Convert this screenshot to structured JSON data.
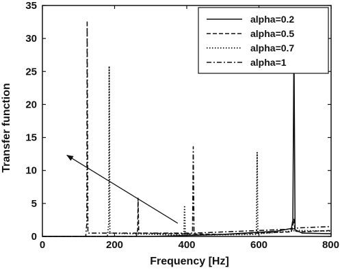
{
  "chart_data": {
    "type": "line",
    "xlabel": "Frequency [Hz]",
    "ylabel": "Transfer function",
    "xlim": [
      0,
      800
    ],
    "ylim": [
      0,
      35
    ],
    "xticks": [
      0,
      200,
      400,
      600,
      800
    ],
    "yticks": [
      0,
      5,
      10,
      15,
      20,
      25,
      30,
      35
    ],
    "grid": false,
    "legend_position": "top-right",
    "series": [
      {
        "name": "alpha=0.2",
        "style": "solid",
        "points": [
          [
            0,
            0
          ],
          [
            300,
            0
          ],
          [
            500,
            0.3
          ],
          [
            650,
            0.8
          ],
          [
            690,
            1.2
          ],
          [
            694,
            2.5
          ],
          [
            697,
            29.2
          ],
          [
            700,
            1.0
          ],
          [
            720,
            0.5
          ],
          [
            800,
            0.4
          ]
        ]
      },
      {
        "name": "alpha=0.5",
        "style": "dashed",
        "points": [
          [
            0,
            0
          ],
          [
            260,
            0
          ],
          [
            264,
            1
          ],
          [
            265,
            5.8
          ],
          [
            267,
            0.5
          ],
          [
            500,
            0.3
          ],
          [
            690,
            0.7
          ],
          [
            697,
            2.6
          ],
          [
            700,
            0.8
          ],
          [
            720,
            0.7
          ],
          [
            800,
            0.9
          ]
        ]
      },
      {
        "name": "alpha=0.7",
        "style": "dotted",
        "points": [
          [
            0,
            0
          ],
          [
            180,
            0
          ],
          [
            184,
            2
          ],
          [
            185,
            25.8
          ],
          [
            187,
            0.5
          ],
          [
            392,
            0.2
          ],
          [
            394,
            4.7
          ],
          [
            396,
            0.2
          ],
          [
            593,
            0.3
          ],
          [
            595,
            12.7
          ],
          [
            597,
            0.4
          ],
          [
            690,
            0.8
          ],
          [
            700,
            0.9
          ],
          [
            800,
            0.8
          ]
        ]
      },
      {
        "name": "alpha=1",
        "style": "dashdot",
        "points": [
          [
            0,
            0
          ],
          [
            120,
            0
          ],
          [
            123,
            2
          ],
          [
            124,
            32.5
          ],
          [
            126,
            0.5
          ],
          [
            416,
            0.5
          ],
          [
            418,
            13.6
          ],
          [
            420,
            0.5
          ],
          [
            690,
            1.1
          ],
          [
            710,
            1.3
          ],
          [
            800,
            1.5
          ]
        ]
      }
    ],
    "annotations": [
      {
        "type": "arrow",
        "from": [
          375,
          2
        ],
        "to": [
          68,
          12.3
        ]
      }
    ]
  },
  "colors": {
    "background": "#ffffff",
    "line": "#111111"
  }
}
